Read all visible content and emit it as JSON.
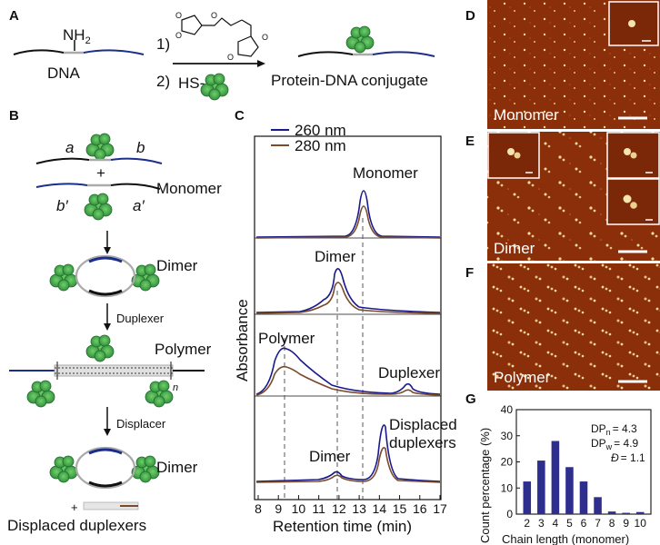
{
  "panels": {
    "A": "A",
    "B": "B",
    "C": "C",
    "D": "D",
    "E": "E",
    "F": "F",
    "G": "G"
  },
  "panel_a": {
    "dna_label": "DNA",
    "amine": "NH",
    "amine_sub": "2",
    "step1": "1)",
    "step2": "2)",
    "thiol": "HS-",
    "product": "Protein-DNA conjugate"
  },
  "panel_b": {
    "seg_a": "a",
    "seg_b": "b",
    "seg_bp": "b′",
    "seg_ap": "a′",
    "plus": "+",
    "monomer": "Monomer",
    "dimer": "Dimer",
    "duplexer": "Duplexer",
    "polymer": "Polymer",
    "n": "n",
    "displacer": "Displacer",
    "dimer2": "Dimer",
    "plus2": "+",
    "displaced": "Displaced duplexers"
  },
  "panel_c": {
    "legend_260": "260 nm",
    "legend_280": "280 nm",
    "ylabel": "Absorbance",
    "xlabel": "Retention time (min)",
    "xticks": [
      "8",
      "9",
      "10",
      "11",
      "12",
      "13",
      "14",
      "15",
      "16",
      "17"
    ],
    "trace_labels": {
      "monomer": "Monomer",
      "dimer": "Dimer",
      "polymer": "Polymer",
      "duplexer": "Duplexer",
      "dimer2": "Dimer",
      "displaced1": "Displaced",
      "displaced2": "duplexers"
    }
  },
  "afm": {
    "monomer": "Monomer",
    "dimer": "Dimer",
    "polymer": "Polymer"
  },
  "colors": {
    "c260": "#1a1a8c",
    "c280": "#7a4a2a",
    "protein": "#3fa34d",
    "afm_bg": "#8a2f0a",
    "bar": "#2e2e8f"
  },
  "chart_data": {
    "type": "bar",
    "categories": [
      "2",
      "3",
      "4",
      "5",
      "6",
      "7",
      "8",
      "9",
      "10"
    ],
    "values": [
      12.5,
      20.5,
      28,
      18,
      12.5,
      6.5,
      1,
      0.5,
      0.8
    ],
    "ylabel": "Count percentage (%)",
    "xlabel": "Chain length (monomer)",
    "ylim": [
      0,
      40
    ],
    "yticks": [
      "0",
      "10",
      "20",
      "30",
      "40"
    ],
    "annotation": {
      "dpn": "DP",
      "dpn_sub": "n",
      "dpn_val": "= 4.3",
      "dpw": "DP",
      "dpw_sub": "w",
      "dpw_val": "= 4.9",
      "disp": "Đ",
      "disp_val": "= 1.1"
    }
  }
}
